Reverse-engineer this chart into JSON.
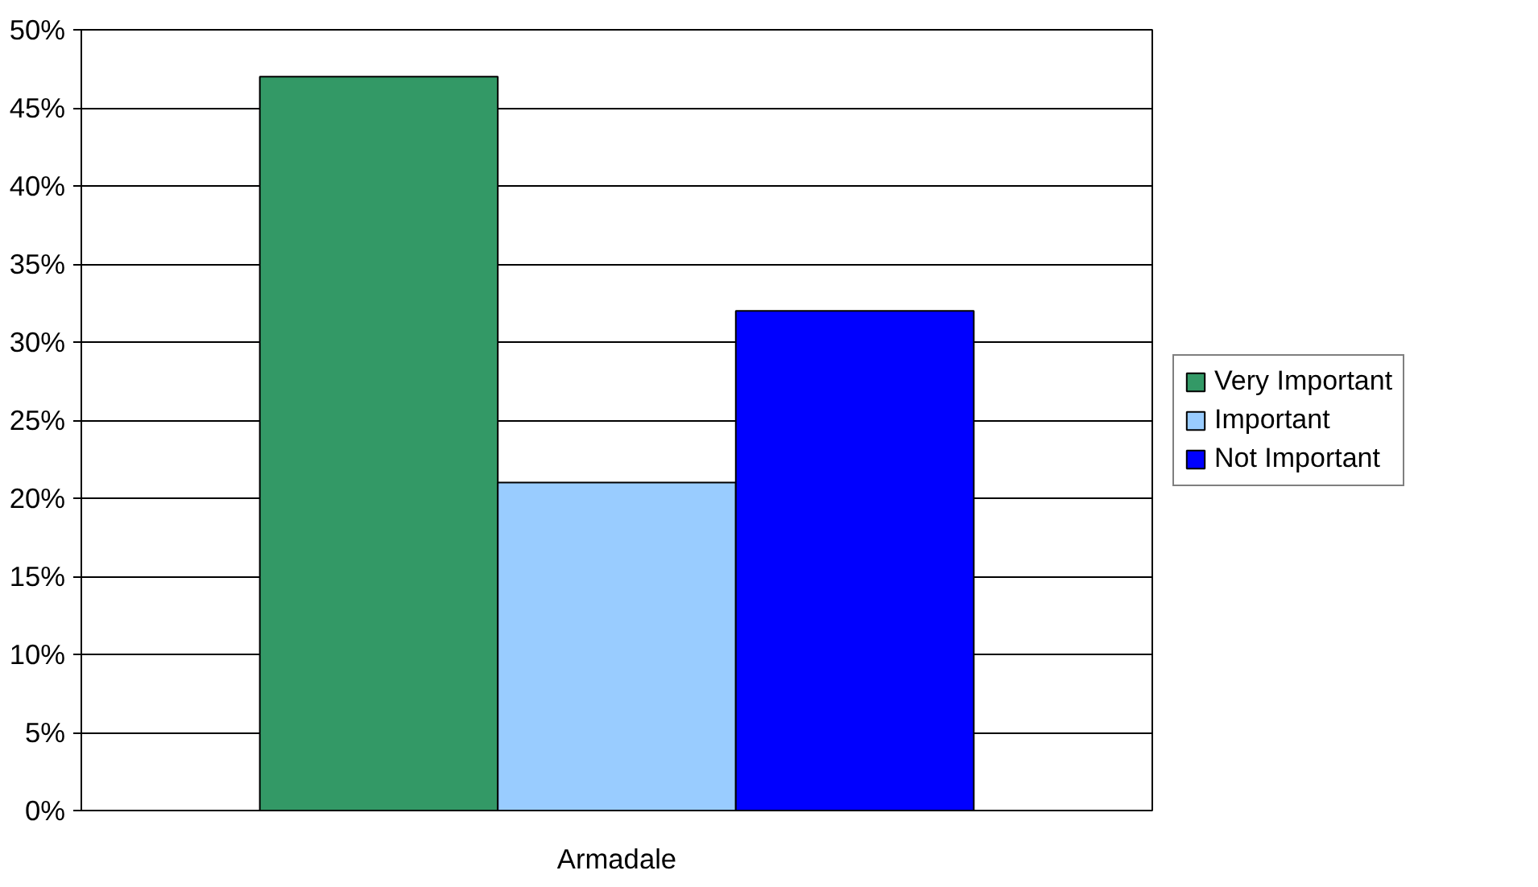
{
  "chart_data": {
    "type": "bar",
    "categories": [
      "Armadale"
    ],
    "series": [
      {
        "name": "Very Important",
        "color": "#339966",
        "values": [
          47
        ]
      },
      {
        "name": "Important",
        "color": "#99ccff",
        "values": [
          21
        ]
      },
      {
        "name": "Not Important",
        "color": "#0000ff",
        "values": [
          32
        ]
      }
    ],
    "ylim": [
      0,
      50
    ],
    "yticks": [
      {
        "value": 0,
        "label": "0%"
      },
      {
        "value": 5,
        "label": "5%"
      },
      {
        "value": 10,
        "label": "10%"
      },
      {
        "value": 15,
        "label": "15%"
      },
      {
        "value": 20,
        "label": "20%"
      },
      {
        "value": 25,
        "label": "25%"
      },
      {
        "value": 30,
        "label": "30%"
      },
      {
        "value": 35,
        "label": "35%"
      },
      {
        "value": 40,
        "label": "40%"
      },
      {
        "value": 45,
        "label": "45%"
      },
      {
        "value": 50,
        "label": "50%"
      }
    ],
    "grid": "y",
    "legend": "right"
  }
}
